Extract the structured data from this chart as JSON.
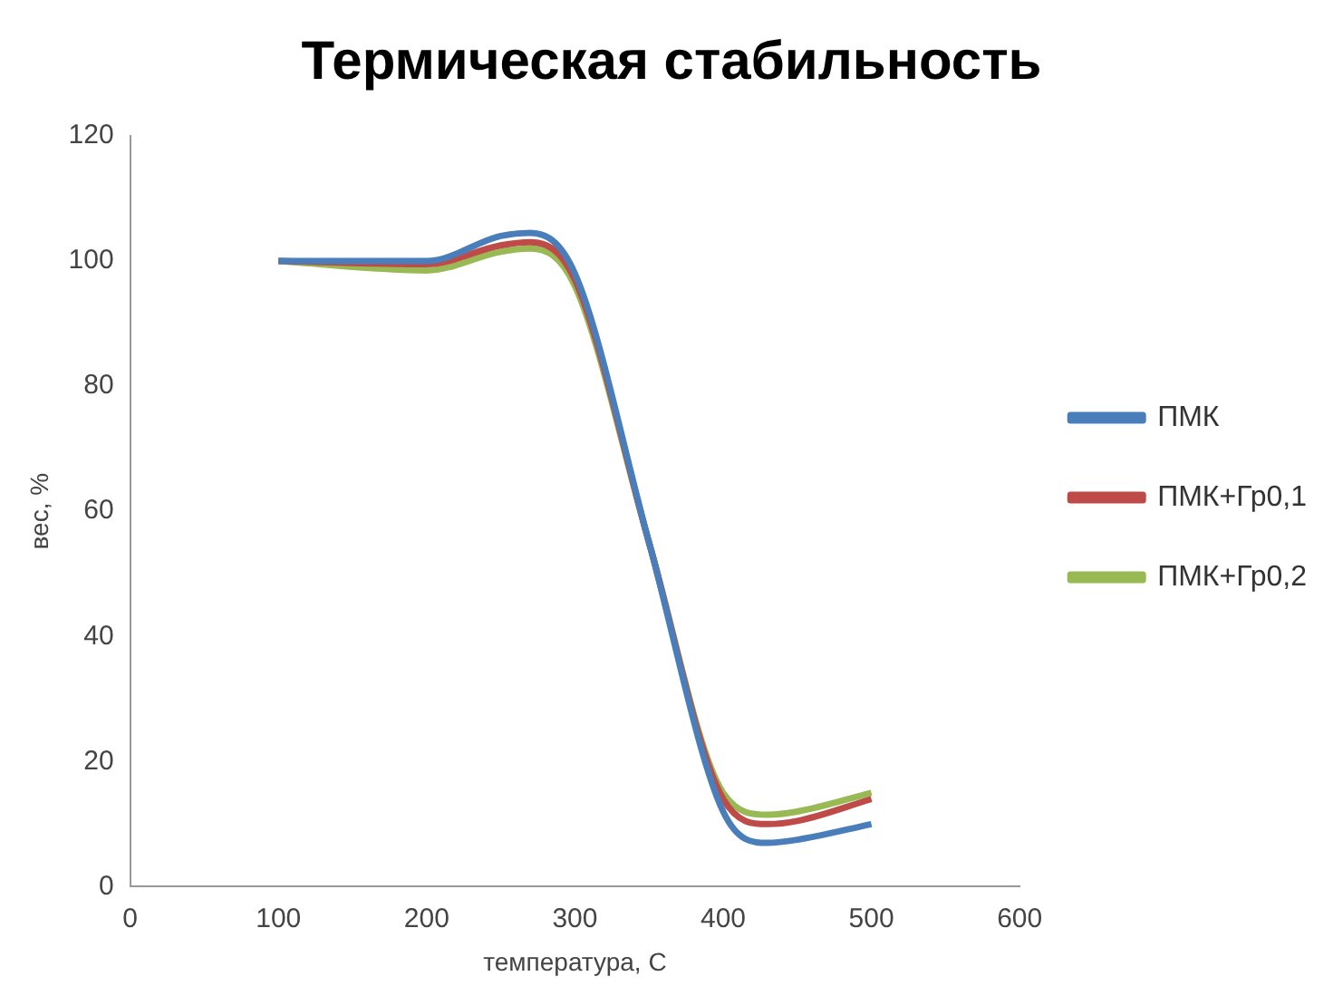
{
  "chart_data": {
    "type": "line",
    "title": "Термическая стабильность",
    "xlabel": "температура, С",
    "ylabel": "вес, %",
    "x": [
      100,
      200,
      250,
      270,
      300,
      350,
      400,
      430,
      450,
      500
    ],
    "series": [
      {
        "name": "ПМК",
        "color": "#4a7ebb",
        "values": [
          100,
          100,
          104,
          104.5,
          98,
          55,
          12,
          7,
          7.5,
          10
        ]
      },
      {
        "name": "ПМК+Гр0,1",
        "color": "#be4b48",
        "values": [
          100,
          99.5,
          102.5,
          103,
          97,
          55,
          14,
          10,
          10.5,
          14
        ]
      },
      {
        "name": "ПМК+Гр0,2",
        "color": "#98b954",
        "values": [
          100,
          98.5,
          101.5,
          102,
          96,
          55,
          15,
          11.5,
          12,
          15
        ]
      }
    ],
    "xlim": [
      0,
      600
    ],
    "xticks": [
      0,
      100,
      200,
      300,
      400,
      500,
      600
    ],
    "ylim": [
      0,
      120
    ],
    "yticks": [
      0,
      20,
      40,
      60,
      80,
      100,
      120
    ],
    "grid": false,
    "legend": "right",
    "marker": "none",
    "line_style": "solid"
  }
}
